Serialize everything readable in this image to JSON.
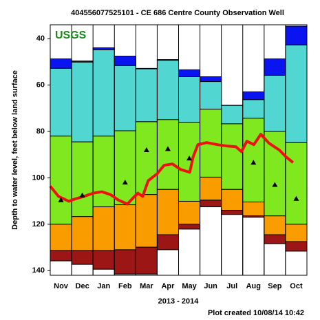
{
  "chart_data": {
    "type": "percentile",
    "title": "404556077525101 - CE 686 Centre County Observation Well",
    "logo": "USGS",
    "xlabel": "2013 - 2014",
    "ylabel": "Depth to water level, feet below land surface",
    "footer": "Plot created 10/08/14 10:42",
    "categories": [
      "Nov",
      "Dec",
      "Jan",
      "Feb",
      "Mar",
      "Apr",
      "May",
      "Jun",
      "Jul",
      "Aug",
      "Sep",
      "Oct"
    ],
    "ylim": [
      34,
      142
    ],
    "yticks": [
      40,
      60,
      80,
      100,
      120,
      140
    ],
    "inverted": true,
    "xlim": [
      0,
      12
    ],
    "series": [
      {
        "color": "#0a14f0",
        "values": [
          48.7,
          49.6,
          43.9,
          47.5,
          52.8,
          49.0,
          53.4,
          56.4,
          68.7,
          62.9,
          48.7,
          34.6
        ]
      },
      {
        "color": "#52d6d2",
        "values": [
          52.8,
          50.1,
          44.8,
          51.6,
          53.0,
          49.3,
          56.4,
          58.5,
          68.8,
          66.3,
          55.8,
          42.7
        ]
      },
      {
        "color": "#80e81e",
        "values": [
          82.0,
          84.5,
          82.0,
          79.7,
          75.8,
          74.9,
          76.1,
          70.4,
          76.7,
          74.3,
          80.0,
          84.8
        ]
      },
      {
        "color": "#f89c00",
        "values": [
          120.0,
          116.7,
          112.5,
          111.6,
          107.2,
          105.0,
          110.1,
          99.7,
          105.0,
          110.4,
          116.4,
          120.0
        ]
      },
      {
        "color": "#9c1616",
        "values": [
          131.3,
          131.3,
          131.3,
          131.0,
          129.9,
          124.5,
          120.0,
          109.6,
          114.0,
          116.4,
          124.5,
          127.5
        ]
      },
      {
        "color": "#ffffff",
        "values": [
          135.8,
          137.3,
          139.4,
          141.5,
          141.5,
          131.0,
          122.1,
          112.5,
          115.8,
          117.0,
          128.4,
          131.6
        ]
      }
    ],
    "line": {
      "color": "#ee1111",
      "x": [
        0,
        0.39,
        0.87,
        1.19,
        1.58,
        2,
        2.42,
        2.81,
        3.19,
        3.61,
        3.94,
        4.1,
        4.32,
        4.58,
        5,
        5.32,
        5.71,
        6.1,
        6.52,
        6.68,
        6.9,
        7.32,
        7.81,
        8.29,
        8.68,
        8.94,
        9.19,
        9.52,
        9.84,
        10.23,
        10.71,
        11.03,
        11.35
      ],
      "values": [
        103.6,
        108,
        110.1,
        109,
        108,
        106.6,
        106,
        107.2,
        109.6,
        111.3,
        108,
        106.6,
        108,
        101.2,
        98.2,
        94.6,
        94,
        96.4,
        97.6,
        91,
        85.7,
        84.8,
        85.7,
        86.3,
        86.6,
        88.7,
        84.2,
        85.7,
        81.2,
        85.1,
        88,
        91,
        93.4
      ]
    },
    "medians": {
      "color": "#000000",
      "values": [
        109.6,
        107.5,
        null,
        102,
        88,
        87.5,
        91.6,
        null,
        null,
        93.4,
        103,
        109
      ]
    }
  }
}
